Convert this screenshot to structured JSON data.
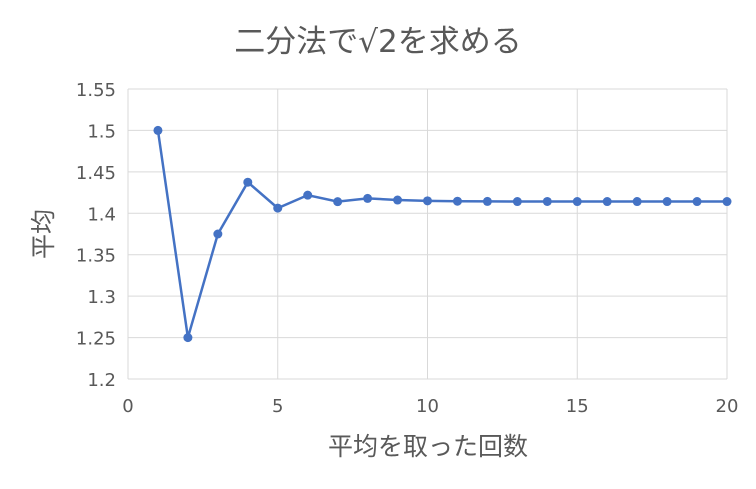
{
  "chart_data": {
    "type": "line",
    "title": "二分法で√2を求める",
    "xlabel": "平均を取った回数",
    "ylabel": "平均",
    "xlim": [
      0,
      20
    ],
    "ylim": [
      1.2,
      1.55
    ],
    "x_ticks": [
      0,
      5,
      10,
      15,
      20
    ],
    "y_ticks": [
      1.2,
      1.25,
      1.3,
      1.35,
      1.4,
      1.45,
      1.5,
      1.55
    ],
    "y_tick_labels": [
      "1.2",
      "1.25",
      "1.3",
      "1.35",
      "1.4",
      "1.45",
      "1.5",
      "1.55"
    ],
    "grid": true,
    "legend": "none",
    "series": [
      {
        "color": "#4472C4",
        "marker": "circle",
        "x": [
          1,
          2,
          3,
          4,
          5,
          6,
          7,
          8,
          9,
          10,
          11,
          12,
          13,
          14,
          15,
          16,
          17,
          18,
          19,
          20
        ],
        "y": [
          1.5,
          1.25,
          1.375,
          1.4375,
          1.40625,
          1.421875,
          1.4140625,
          1.41796875,
          1.416015625,
          1.4150390625,
          1.41455078,
          1.41430664,
          1.41418457,
          1.41424561,
          1.41421509,
          1.41419983,
          1.41420746,
          1.41421127,
          1.41421318,
          1.41421413
        ]
      }
    ]
  }
}
